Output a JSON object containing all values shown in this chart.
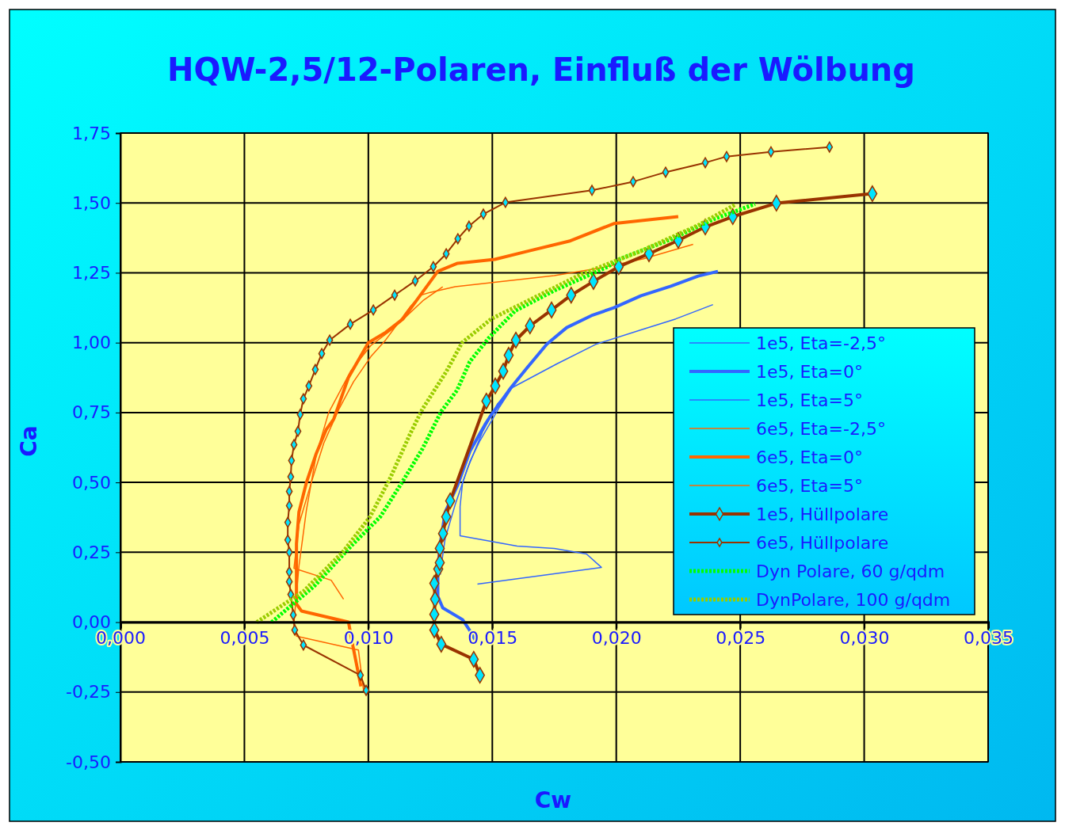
{
  "chart_data": {
    "type": "line",
    "title": "HQW-2,5/12-Polaren, Einfluß der Wölbung",
    "xlabel": "Cw",
    "ylabel": "Ca",
    "xlim": [
      0,
      0.035
    ],
    "ylim": [
      -0.5,
      1.75
    ],
    "xticks": [
      {
        "value": 0,
        "label": "0,000"
      },
      {
        "value": 0.005,
        "label": "0,005"
      },
      {
        "value": 0.01,
        "label": "0,010"
      },
      {
        "value": 0.015,
        "label": "0,015"
      },
      {
        "value": 0.02,
        "label": "0,020"
      },
      {
        "value": 0.025,
        "label": "0,025"
      },
      {
        "value": 0.03,
        "label": "0,030"
      },
      {
        "value": 0.035,
        "label": "0,035"
      }
    ],
    "yticks": [
      {
        "value": -0.5,
        "label": "-0,50"
      },
      {
        "value": -0.25,
        "label": "-0,25"
      },
      {
        "value": 0,
        "label": "0,00"
      },
      {
        "value": 0.25,
        "label": "0,25"
      },
      {
        "value": 0.5,
        "label": "0,50"
      },
      {
        "value": 0.75,
        "label": "0,75"
      },
      {
        "value": 1,
        "label": "1,00"
      },
      {
        "value": 1.25,
        "label": "1,25"
      },
      {
        "value": 1.5,
        "label": "1,50"
      },
      {
        "value": 1.75,
        "label": "1,75"
      }
    ],
    "grid": true,
    "legend": "right",
    "marker": "none",
    "line_style": "solid",
    "series": [
      {
        "name": "1e5, Eta=-2,5°",
        "color": "#3366ff",
        "x": [
          0.0129,
          0.013,
          0.0131,
          0.0135,
          0.014,
          0.0146,
          0.0152,
          0.0158
        ],
        "values": [
          0.17,
          0.24,
          0.3,
          0.42,
          0.55,
          0.68,
          0.78,
          0.84
        ]
      },
      {
        "name": "1e5, Eta=0°",
        "color": "#3366ff",
        "x": [
          0.0143,
          0.0141,
          0.0138,
          0.013,
          0.0128,
          0.0128,
          0.0129,
          0.0131,
          0.0136,
          0.0141,
          0.0147,
          0.0149,
          0.0157,
          0.0164,
          0.0172,
          0.018,
          0.019,
          0.0199,
          0.021,
          0.0222,
          0.0233,
          0.0241
        ],
        "values": [
          -0.062,
          -0.031,
          0.009,
          0.051,
          0.093,
          0.187,
          0.28,
          0.394,
          0.49,
          0.612,
          0.706,
          0.734,
          0.833,
          0.91,
          0.995,
          1.054,
          1.097,
          1.125,
          1.168,
          1.202,
          1.238,
          1.255
        ]
      },
      {
        "name": "1e5, Eta=5°",
        "color": "#3366ff",
        "x": [
          0.0144,
          0.0194,
          0.0188,
          0.0175,
          0.016,
          0.0137,
          0.0137,
          0.0138,
          0.0141,
          0.0145,
          0.0153,
          0.0158,
          0.0176,
          0.0192,
          0.021,
          0.0224,
          0.0239
        ],
        "values": [
          0.136,
          0.196,
          0.244,
          0.264,
          0.272,
          0.309,
          0.414,
          0.499,
          0.575,
          0.649,
          0.771,
          0.839,
          0.924,
          0.995,
          1.046,
          1.085,
          1.136
        ]
      },
      {
        "name": "6e5, Eta=-2,5°",
        "color": "#ff6600",
        "x": [
          0.009,
          0.0085,
          0.007,
          0.0072,
          0.0077,
          0.0082,
          0.0088,
          0.0094,
          0.0101,
          0.0107,
          0.0112,
          0.0117,
          0.0121,
          0.0125,
          0.0135,
          0.0155,
          0.0175,
          0.0195,
          0.0211,
          0.0231
        ],
        "values": [
          0.082,
          0.15,
          0.193,
          0.35,
          0.5,
          0.64,
          0.76,
          0.86,
          0.95,
          1.01,
          1.07,
          1.13,
          1.17,
          1.18,
          1.2,
          1.22,
          1.24,
          1.27,
          1.3,
          1.352
        ]
      },
      {
        "name": "6e5, Eta=0°",
        "color": "#ff6600",
        "x": [
          0.0097,
          0.0094,
          0.0092,
          0.0073,
          0.0071,
          0.0071,
          0.0071,
          0.0072,
          0.0075,
          0.0079,
          0.0083,
          0.0086,
          0.0092,
          0.01,
          0.0107,
          0.0114,
          0.0121,
          0.0128,
          0.0136,
          0.0151,
          0.0165,
          0.0181,
          0.0199,
          0.0225
        ],
        "values": [
          -0.23,
          -0.096,
          0,
          0.04,
          0.065,
          0.187,
          0.28,
          0.394,
          0.499,
          0.604,
          0.689,
          0.726,
          0.876,
          1.0,
          1.037,
          1.085,
          1.17,
          1.255,
          1.284,
          1.298,
          1.329,
          1.363,
          1.426,
          1.451
        ]
      },
      {
        "name": "6e5, Eta=5°",
        "color": "#ff6600",
        "x": [
          0.0098,
          0.0096,
          0.0071,
          0.007,
          0.0072,
          0.0075,
          0.0079,
          0.0084,
          0.0093,
          0.0101,
          0.011,
          0.0122,
          0.013
        ],
        "values": [
          -0.24,
          -0.1,
          -0.05,
          0.0,
          0.2,
          0.4,
          0.6,
          0.75,
          0.9,
          0.99,
          1.05,
          1.15,
          1.2
        ]
      },
      {
        "name": "1e5, Hüllpolare",
        "color": "#993300",
        "marker": "diamond",
        "x": [
          0.0145,
          0.01425,
          0.01294,
          0.01266,
          0.01266,
          0.01269,
          0.01266,
          0.01282,
          0.01288,
          0.01288,
          0.01301,
          0.01314,
          0.0133,
          0.01476,
          0.01512,
          0.01544,
          0.01566,
          0.01595,
          0.01652,
          0.01739,
          0.01818,
          0.01908,
          0.0201,
          0.02132,
          0.0225,
          0.02359,
          0.0247,
          0.02646,
          0.03033
        ],
        "values": [
          -0.19,
          -0.133,
          -0.079,
          -0.028,
          0.028,
          0.082,
          0.139,
          0.19,
          0.213,
          0.264,
          0.317,
          0.377,
          0.434,
          0.791,
          0.845,
          0.898,
          0.955,
          1.009,
          1.06,
          1.117,
          1.17,
          1.219,
          1.272,
          1.318,
          1.366,
          1.414,
          1.451,
          1.499,
          1.533
        ]
      },
      {
        "name": "6e5, Hüllpolare",
        "color": "#993300",
        "marker": "diamond",
        "x": [
          0.00991,
          0.00968,
          0.00738,
          0.00703,
          0.00697,
          0.00687,
          0.00681,
          0.00681,
          0.00681,
          0.00675,
          0.00675,
          0.00681,
          0.00681,
          0.00687,
          0.0069,
          0.007,
          0.00716,
          0.00725,
          0.00738,
          0.0076,
          0.00786,
          0.00812,
          0.00844,
          0.00927,
          0.0102,
          0.01106,
          0.01189,
          0.01262,
          0.01314,
          0.01361,
          0.01406,
          0.01464,
          0.01553,
          0.01902,
          0.02068,
          0.02199,
          0.02359,
          0.02445,
          0.02624,
          0.0286
        ],
        "values": [
          -0.244,
          -0.19,
          -0.082,
          -0.028,
          0.026,
          0.099,
          0.145,
          0.18,
          0.25,
          0.294,
          0.357,
          0.417,
          0.468,
          0.52,
          0.578,
          0.635,
          0.683,
          0.743,
          0.799,
          0.845,
          0.904,
          0.961,
          1.009,
          1.066,
          1.117,
          1.17,
          1.221,
          1.272,
          1.318,
          1.372,
          1.417,
          1.46,
          1.502,
          1.545,
          1.576,
          1.61,
          1.644,
          1.666,
          1.683,
          1.7
        ]
      },
      {
        "name": "Dyn Polare, 60 g/qdm",
        "color": "#00ff00",
        "line_style": "dotted",
        "x": [
          0.0061,
          0.00783,
          0.0093,
          0.01048,
          0.01135,
          0.01218,
          0.01294,
          0.01358,
          0.01409,
          0.01486,
          0.01592,
          0.01751,
          0.01966,
          0.0201,
          0.02218,
          0.02387,
          0.0256
        ],
        "values": [
          0.0,
          0.13,
          0.272,
          0.377,
          0.499,
          0.62,
          0.754,
          0.83,
          0.932,
          1.017,
          1.114,
          1.187,
          1.272,
          1.298,
          1.369,
          1.44,
          1.496
        ]
      },
      {
        "name": "DynPolare, 100 g/qdm",
        "color": "#99cc00",
        "line_style": "dotted",
        "x": [
          0.0055,
          0.00738,
          0.00898,
          0.01007,
          0.0109,
          0.01166,
          0.01218,
          0.01314,
          0.01378,
          0.01496,
          0.01646,
          0.01857,
          0.02103,
          0.0233,
          0.0248
        ],
        "values": [
          0.0,
          0.11,
          0.252,
          0.377,
          0.519,
          0.669,
          0.762,
          0.896,
          1.0,
          1.085,
          1.151,
          1.244,
          1.329,
          1.42,
          1.494
        ]
      }
    ]
  }
}
